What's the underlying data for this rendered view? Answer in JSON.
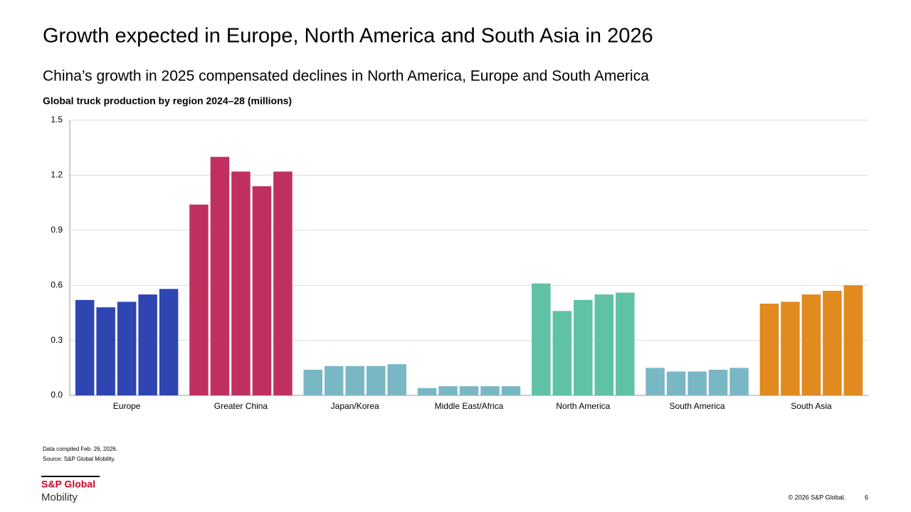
{
  "title": "Growth expected in Europe, North America and South Asia in 2026",
  "subtitle": "China’s growth in 2025 compensated declines in North America, Europe and South America",
  "chart_data": {
    "type": "grouped-bar",
    "title": "Global truck production by region 2024–28 (millions)",
    "categories": [
      "Europe",
      "Greater China",
      "Japan/Korea",
      "Middle East/Africa",
      "North America",
      "South America",
      "South Asia"
    ],
    "colors": [
      "#2f46b2",
      "#c0305f",
      "#7ab7c5",
      "#7ab7c5",
      "#5fc1a6",
      "#7ab7c5",
      "#e08a1f"
    ],
    "values": [
      [
        0.52,
        0.48,
        0.51,
        0.55,
        0.58
      ],
      [
        1.04,
        1.3,
        1.22,
        1.14,
        1.22
      ],
      [
        0.14,
        0.16,
        0.16,
        0.16,
        0.17
      ],
      [
        0.04,
        0.05,
        0.05,
        0.05,
        0.05
      ],
      [
        0.61,
        0.46,
        0.52,
        0.55,
        0.56
      ],
      [
        0.15,
        0.13,
        0.13,
        0.14,
        0.15
      ],
      [
        0.5,
        0.51,
        0.55,
        0.57,
        0.6
      ]
    ],
    "ylim": [
      0,
      1.5
    ],
    "yticks": [
      {
        "value": 0,
        "label": "0.0"
      },
      0.3,
      0.6,
      0.9,
      1.2,
      1.5
    ],
    "grid": true
  },
  "footnotes": [
    "Data compiled Feb. 26, 2026.",
    "Source: S&P Global Mobility."
  ],
  "logo": {
    "brand": "S&P Global",
    "unit": "Mobility"
  },
  "copyright": "© 2026 S&P Global.",
  "page_number": "6"
}
